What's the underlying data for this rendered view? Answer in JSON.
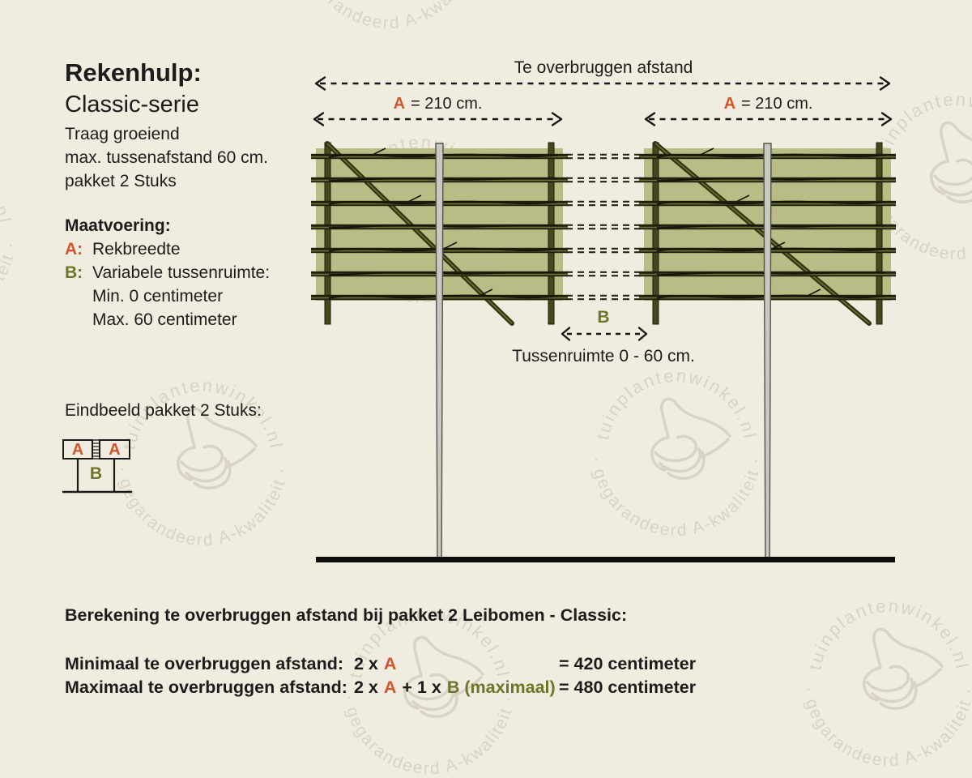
{
  "info_panel": {
    "title": "Rekenhulp:",
    "subtitle": "Classic-serie",
    "lines": "Traag groeiend\nmax. tussenafstand 60 cm.\npakket 2 Stuks",
    "maatvoering": {
      "heading": "Maatvoering:",
      "rows": [
        {
          "key": "A:",
          "value": "Rekbreedte"
        },
        {
          "key": "B:",
          "value": "Variabele tussenruimte:"
        },
        {
          "key": "",
          "value": "Min. 0 centimeter"
        },
        {
          "key": "",
          "value": "Max. 60 centimeter"
        }
      ]
    },
    "eindbeeld": {
      "heading": "Eindbeeld pakket 2 Stuks:",
      "box_a_label": "A",
      "gap_b_label": "B"
    }
  },
  "diagram": {
    "total_span_label": "Te overbruggen afstand",
    "left_a": {
      "key": "A",
      "value": "= 210 cm."
    },
    "right_a": {
      "key": "A",
      "value": "= 210 cm."
    },
    "gap_label": "B",
    "gap_caption": "Tussenruimte 0 - 60 cm."
  },
  "calculation": {
    "heading": "Berekening te overbruggen afstand bij pakket 2 Leibomen - Classic:",
    "rows": [
      {
        "label": "Minimaal te overbruggen afstand:",
        "seg1": "2 x",
        "a": "A",
        "seg2": "",
        "b": "",
        "result": "= 420 centimeter"
      },
      {
        "label": "Maximaal te overbruggen afstand:",
        "seg1": "2 x",
        "a": "A",
        "seg2": "+ 1 x",
        "b": "B (maximaal)",
        "result": "= 480 centimeter"
      }
    ]
  },
  "watermark": {
    "top_text": "tuinplantenwinkel.nl",
    "bottom_text": "· gegarandeerd A-kwaliteit ·"
  },
  "colors": {
    "background": "#f0ecdf",
    "accent_a": "#d2552c",
    "accent_b": "#6f7428",
    "panel_green": "#b9bc85",
    "rail_dark": "#1f1f0d",
    "rail_highlight": "#707238",
    "trunk": "#c9c9c3",
    "watermark": "#d8d3c4",
    "ground": "#0d0d0d"
  }
}
